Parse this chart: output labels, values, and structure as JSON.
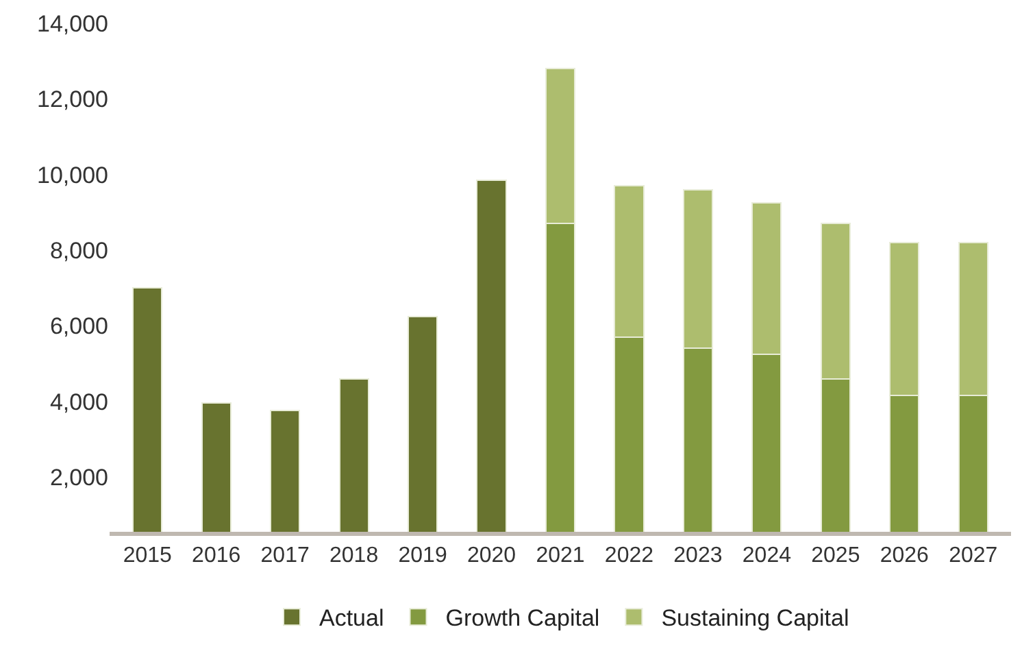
{
  "chart_data": {
    "type": "bar",
    "stacked": true,
    "categories": [
      "2015",
      "2016",
      "2017",
      "2018",
      "2019",
      "2020",
      "2021",
      "2022",
      "2023",
      "2024",
      "2025",
      "2026",
      "2027"
    ],
    "series": [
      {
        "name": "Actual",
        "color": "#68732f",
        "values": [
          7000,
          3950,
          3750,
          4600,
          6250,
          9850,
          null,
          null,
          null,
          null,
          null,
          null,
          null
        ]
      },
      {
        "name": "Growth Capital",
        "color": "#839a40",
        "values": [
          null,
          null,
          null,
          null,
          null,
          null,
          8700,
          5700,
          5400,
          5250,
          4600,
          4150,
          4150
        ]
      },
      {
        "name": "Sustaining Capital",
        "color": "#adbd6e",
        "values": [
          null,
          null,
          null,
          null,
          null,
          null,
          4100,
          4000,
          4200,
          4000,
          4100,
          4050,
          4050
        ]
      }
    ],
    "ylim": [
      550,
      14000
    ],
    "yticks": [
      {
        "value": 2000,
        "label": "2,000"
      },
      {
        "value": 4000,
        "label": "4,000"
      },
      {
        "value": 6000,
        "label": "6,000"
      },
      {
        "value": 8000,
        "label": "8,000"
      },
      {
        "value": 10000,
        "label": "10,000"
      },
      {
        "value": 12000,
        "label": "12,000"
      },
      {
        "value": 14000,
        "label": "14,000"
      }
    ],
    "legend": "bottom"
  }
}
